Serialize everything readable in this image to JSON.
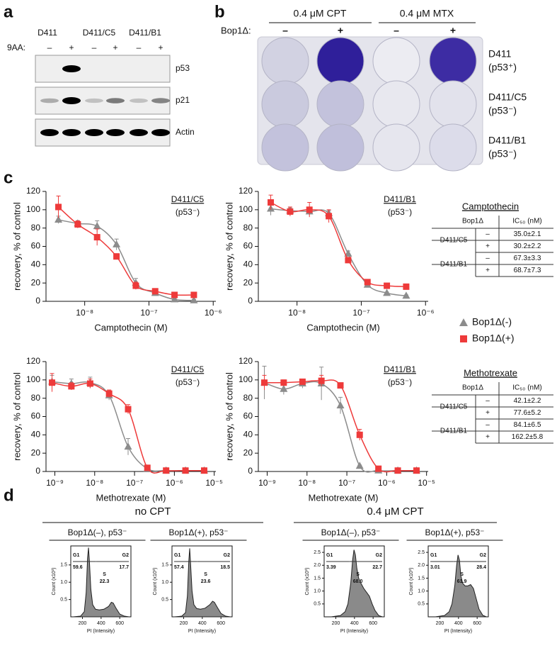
{
  "panel_labels": [
    "a",
    "b",
    "c",
    "d"
  ],
  "panel_a": {
    "treatment_label": "9AA:",
    "lines": [
      "D411",
      "D411/C5",
      "D411/B1"
    ],
    "signs": [
      "–",
      "+",
      "–",
      "+",
      "–",
      "+"
    ],
    "blots": [
      "p53",
      "p21",
      "Actin"
    ]
  },
  "panel_b": {
    "treatments": [
      "0.4 μM CPT",
      "0.4 μM MTX"
    ],
    "factor_label": "Bop1Δ:",
    "signs": [
      "–",
      "+",
      "–",
      "+"
    ],
    "rows": [
      {
        "line": "D411",
        "status": "(p53⁺)"
      },
      {
        "line": "D411/C5",
        "status": "(p53⁻)"
      },
      {
        "line": "D411/B1",
        "status": "(p53⁻)"
      }
    ]
  },
  "chart_data": [
    {
      "type": "scatter",
      "line": "D411/C5",
      "status": "(p53⁻)",
      "ylabel": "recovery,  % of control",
      "xlabel": "Camptothecin (M)",
      "log_x": true,
      "x": [
        3.9e-09,
        7.8e-09,
        1.56e-08,
        3.125e-08,
        6.25e-08,
        1.25e-07,
        2.5e-07,
        5e-07
      ],
      "xlim": [
        2.5e-09,
        1.1e-06
      ],
      "xticks": [
        {
          "value": 1e-08,
          "label": "10⁻⁸"
        },
        {
          "value": 1e-07,
          "label": "10⁻⁷"
        },
        {
          "value": 1e-06,
          "label": "10⁻⁶"
        }
      ],
      "ylim": [
        0,
        120
      ],
      "yticks": [
        0,
        20,
        40,
        60,
        80,
        100,
        120
      ],
      "series": [
        {
          "color": "#8c8c8c",
          "marker": "triangle",
          "values": [
            89,
            85,
            82,
            62,
            20,
            9,
            2,
            1
          ],
          "errors": [
            4,
            3,
            6,
            6,
            5,
            2,
            1,
            1
          ]
        },
        {
          "color": "#ee3a3a",
          "marker": "square",
          "values": [
            103,
            84,
            70,
            49,
            17,
            11,
            7,
            7
          ],
          "errors": [
            12,
            4,
            9,
            3,
            4,
            2,
            1,
            1
          ]
        }
      ]
    },
    {
      "type": "scatter",
      "line": "D411/B1",
      "status": "(p53⁻)",
      "ylabel": "recovery,  % of control",
      "xlabel": "Camptothecin (M)",
      "log_x": true,
      "x": [
        3.9e-09,
        7.8e-09,
        1.56e-08,
        3.125e-08,
        6.25e-08,
        1.25e-07,
        2.5e-07,
        5e-07
      ],
      "xlim": [
        2.5e-09,
        1.1e-06
      ],
      "xticks": [
        {
          "value": 1e-08,
          "label": "10⁻⁸"
        },
        {
          "value": 1e-07,
          "label": "10⁻⁷"
        },
        {
          "value": 1e-06,
          "label": "10⁻⁶"
        }
      ],
      "ylim": [
        0,
        120
      ],
      "yticks": [
        0,
        20,
        40,
        60,
        80,
        100,
        120
      ],
      "series": [
        {
          "color": "#8c8c8c",
          "marker": "triangle",
          "values": [
            101,
            99,
            98,
            96,
            52,
            18,
            9,
            6
          ],
          "errors": [
            7,
            3,
            4,
            3,
            3,
            2,
            1,
            1
          ]
        },
        {
          "color": "#ee3a3a",
          "marker": "square",
          "values": [
            108,
            98,
            100,
            93,
            45,
            21,
            17,
            16
          ],
          "errors": [
            8,
            5,
            8,
            7,
            2,
            2,
            1,
            1
          ]
        }
      ]
    },
    {
      "type": "scatter",
      "line": "D411/C5",
      "status": "(p53⁻)",
      "ylabel": "recovery,  % of control",
      "xlabel": "Methotrexate (M)",
      "log_x": true,
      "x": [
        8.5e-10,
        2.6e-09,
        7.7e-09,
        2.3e-08,
        6.9e-08,
        2.1e-07,
        6.2e-07,
        1.9e-06,
        5.6e-06
      ],
      "xlim": [
        6e-10,
        1.1e-05
      ],
      "xticks": [
        {
          "value": 1e-09,
          "label": "10⁻⁹"
        },
        {
          "value": 1e-08,
          "label": "10⁻⁸"
        },
        {
          "value": 1e-07,
          "label": "10⁻⁷"
        },
        {
          "value": 1e-06,
          "label": "10⁻⁶"
        },
        {
          "value": 1e-05,
          "label": "10⁻⁵"
        }
      ],
      "ylim": [
        0,
        120
      ],
      "yticks": [
        0,
        20,
        40,
        60,
        80,
        100,
        120
      ],
      "series": [
        {
          "color": "#8c8c8c",
          "marker": "triangle",
          "values": [
            98,
            96,
            97,
            83,
            27,
            3,
            1,
            1,
            1
          ],
          "errors": [
            7,
            5,
            6,
            5,
            9,
            1,
            1,
            1,
            1
          ]
        },
        {
          "color": "#ee3a3a",
          "marker": "square",
          "values": [
            97,
            93,
            96,
            85,
            68,
            4,
            1,
            1,
            1
          ],
          "errors": [
            10,
            4,
            5,
            4,
            5,
            1,
            1,
            1,
            1
          ]
        }
      ]
    },
    {
      "type": "scatter",
      "line": "D411/B1",
      "status": "(p53⁻)",
      "ylabel": "recovery,  % of control",
      "xlabel": "Methotrexate (M)",
      "log_x": true,
      "x": [
        8.5e-10,
        2.6e-09,
        7.7e-09,
        2.3e-08,
        6.9e-08,
        2.1e-07,
        6.2e-07,
        1.9e-06,
        5.6e-06
      ],
      "xlim": [
        6e-10,
        1.1e-05
      ],
      "xticks": [
        {
          "value": 1e-09,
          "label": "10⁻⁹"
        },
        {
          "value": 1e-08,
          "label": "10⁻⁸"
        },
        {
          "value": 1e-07,
          "label": "10⁻⁷"
        },
        {
          "value": 1e-06,
          "label": "10⁻⁶"
        },
        {
          "value": 1e-05,
          "label": "10⁻⁵"
        }
      ],
      "ylim": [
        0,
        120
      ],
      "yticks": [
        0,
        20,
        40,
        60,
        80,
        100,
        120
      ],
      "series": [
        {
          "color": "#8c8c8c",
          "marker": "triangle",
          "values": [
            97,
            90,
            96,
            96,
            72,
            6,
            1,
            1,
            1
          ],
          "errors": [
            18,
            6,
            5,
            18,
            9,
            1,
            1,
            1,
            1
          ]
        },
        {
          "color": "#ee3a3a",
          "marker": "square",
          "values": [
            97,
            97,
            98,
            99,
            94,
            40,
            3,
            1,
            1
          ],
          "errors": [
            8,
            3,
            3,
            6,
            2,
            6,
            1,
            1,
            1
          ]
        }
      ]
    }
  ],
  "legend": [
    {
      "name": "Bop1Δ(-)",
      "color": "#8c8c8c",
      "marker": "triangle"
    },
    {
      "name": "Bop1Δ(+)",
      "color": "#ee3a3a",
      "marker": "square"
    }
  ],
  "tables": [
    {
      "title": "Camptothecin",
      "header": [
        "Bop1Δ",
        "IC₅₀ (nM)"
      ],
      "groups": [
        {
          "line": "D411/C5",
          "rows": [
            [
              "–",
              "35.0±2.1"
            ],
            [
              "+",
              "30.2±2.2"
            ]
          ]
        },
        {
          "line": "D411/B1",
          "rows": [
            [
              "–",
              "67.3±3.3"
            ],
            [
              "+",
              "68.7±7.3"
            ]
          ]
        }
      ]
    },
    {
      "title": "Methotrexate",
      "header": [
        "Bop1Δ",
        "IC₅₀ (nM)"
      ],
      "groups": [
        {
          "line": "D411/C5",
          "rows": [
            [
              "–",
              "42.1±2.2"
            ],
            [
              "+",
              "77.6±5.2"
            ]
          ]
        },
        {
          "line": "D411/B1",
          "rows": [
            [
              "–",
              "84.1±6.5"
            ],
            [
              "+",
              "162.2±5.8"
            ]
          ]
        }
      ]
    }
  ],
  "panel_d": {
    "groups": [
      {
        "title": "no CPT",
        "plots": [
          {
            "type": "area",
            "title": "Bop1Δ(–), p53⁻",
            "xlabel": "PI (Intensity)",
            "ylabel": "Count (x10³)",
            "x": [
              100,
              180,
              220,
              240,
              255,
              265,
              275,
              290,
              310,
              340,
              380,
              430,
              480,
              510,
              530,
              560,
              600,
              650,
              700
            ],
            "values": [
              0,
              0.02,
              0.15,
              0.7,
              1.7,
              2.0,
              1.6,
              0.8,
              0.35,
              0.22,
              0.2,
              0.22,
              0.3,
              0.42,
              0.4,
              0.25,
              0.08,
              0.02,
              0
            ],
            "xlim": [
              75,
              720
            ],
            "xticks": [
              200,
              400,
              600
            ],
            "ylim": [
              0,
              2.05
            ],
            "yticks": [
              0.5,
              {
                "value": 1,
                "label": "1.0"
              },
              1.5
            ],
            "gates": [
              {
                "label": "G1",
                "value": "59.6"
              },
              {
                "label": "S",
                "value": "22.3"
              },
              {
                "label": "G2",
                "value": "17.7"
              }
            ]
          },
          {
            "type": "area",
            "title": "Bop1Δ(+), p53⁻",
            "xlabel": "PI (Intensity)",
            "ylabel": "Count (x10³)",
            "x": [
              100,
              180,
              220,
              240,
              255,
              265,
              275,
              290,
              310,
              340,
              380,
              430,
              480,
              510,
              530,
              560,
              600,
              650,
              700
            ],
            "values": [
              0,
              0.02,
              0.12,
              0.6,
              1.6,
              1.98,
              1.5,
              0.75,
              0.35,
              0.24,
              0.22,
              0.25,
              0.35,
              0.45,
              0.42,
              0.28,
              0.1,
              0.02,
              0
            ],
            "xlim": [
              75,
              720
            ],
            "xticks": [
              200,
              400,
              600
            ],
            "ylim": [
              0,
              2.05
            ],
            "yticks": [
              0.5,
              {
                "value": 1,
                "label": "1.0"
              },
              1.5
            ],
            "gates": [
              {
                "label": "G1",
                "value": "57.4"
              },
              {
                "label": "S",
                "value": "23.6"
              },
              {
                "label": "G2",
                "value": "18.5"
              }
            ]
          }
        ]
      },
      {
        "title": "0.4 μM CPT",
        "plots": [
          {
            "type": "area",
            "title": "Bop1Δ(–), p53⁻",
            "xlabel": "PI (Intensity)",
            "ylabel": "Count (x10³)",
            "x": [
              150,
              250,
              300,
              330,
              360,
              380,
              395,
              410,
              425,
              445,
              470,
              500,
              530,
              560,
              590,
              620,
              660,
              700
            ],
            "values": [
              0,
              0.05,
              0.2,
              0.5,
              1.3,
              2.2,
              2.6,
              2.4,
              1.9,
              1.5,
              1.3,
              1.1,
              0.95,
              0.8,
              0.5,
              0.25,
              0.05,
              0
            ],
            "xlim": [
              75,
              720
            ],
            "xticks": [
              200,
              400,
              600
            ],
            "ylim": [
              0,
              2.75
            ],
            "yticks": [
              0.5,
              {
                "value": 1,
                "label": "1.0"
              },
              1.5,
              {
                "value": 2,
                "label": "2.0"
              },
              2.5
            ],
            "gates": [
              {
                "label": "G1",
                "value": "3.39"
              },
              {
                "label": "S",
                "value": "68.0"
              },
              {
                "label": "G2",
                "value": "22.7"
              }
            ]
          },
          {
            "type": "area",
            "title": "Bop1Δ(+), p53⁻",
            "xlabel": "PI (Intensity)",
            "ylabel": "Count (x10³)",
            "x": [
              150,
              250,
              300,
              330,
              360,
              380,
              395,
              410,
              425,
              445,
              470,
              500,
              530,
              560,
              590,
              620,
              660,
              700
            ],
            "values": [
              0,
              0.05,
              0.2,
              0.5,
              1.2,
              2.0,
              2.4,
              2.2,
              1.6,
              1.3,
              1.2,
              1.2,
              1.25,
              1.1,
              0.7,
              0.3,
              0.06,
              0
            ],
            "xlim": [
              75,
              720
            ],
            "xticks": [
              200,
              400,
              600
            ],
            "ylim": [
              0,
              2.75
            ],
            "yticks": [
              0.5,
              {
                "value": 1,
                "label": "1.0"
              },
              1.5,
              {
                "value": 2,
                "label": "2.0"
              },
              2.5
            ],
            "gates": [
              {
                "label": "G1",
                "value": "3.01"
              },
              {
                "label": "S",
                "value": "61.9"
              },
              {
                "label": "G2",
                "value": "28.4"
              }
            ]
          }
        ]
      }
    ]
  }
}
